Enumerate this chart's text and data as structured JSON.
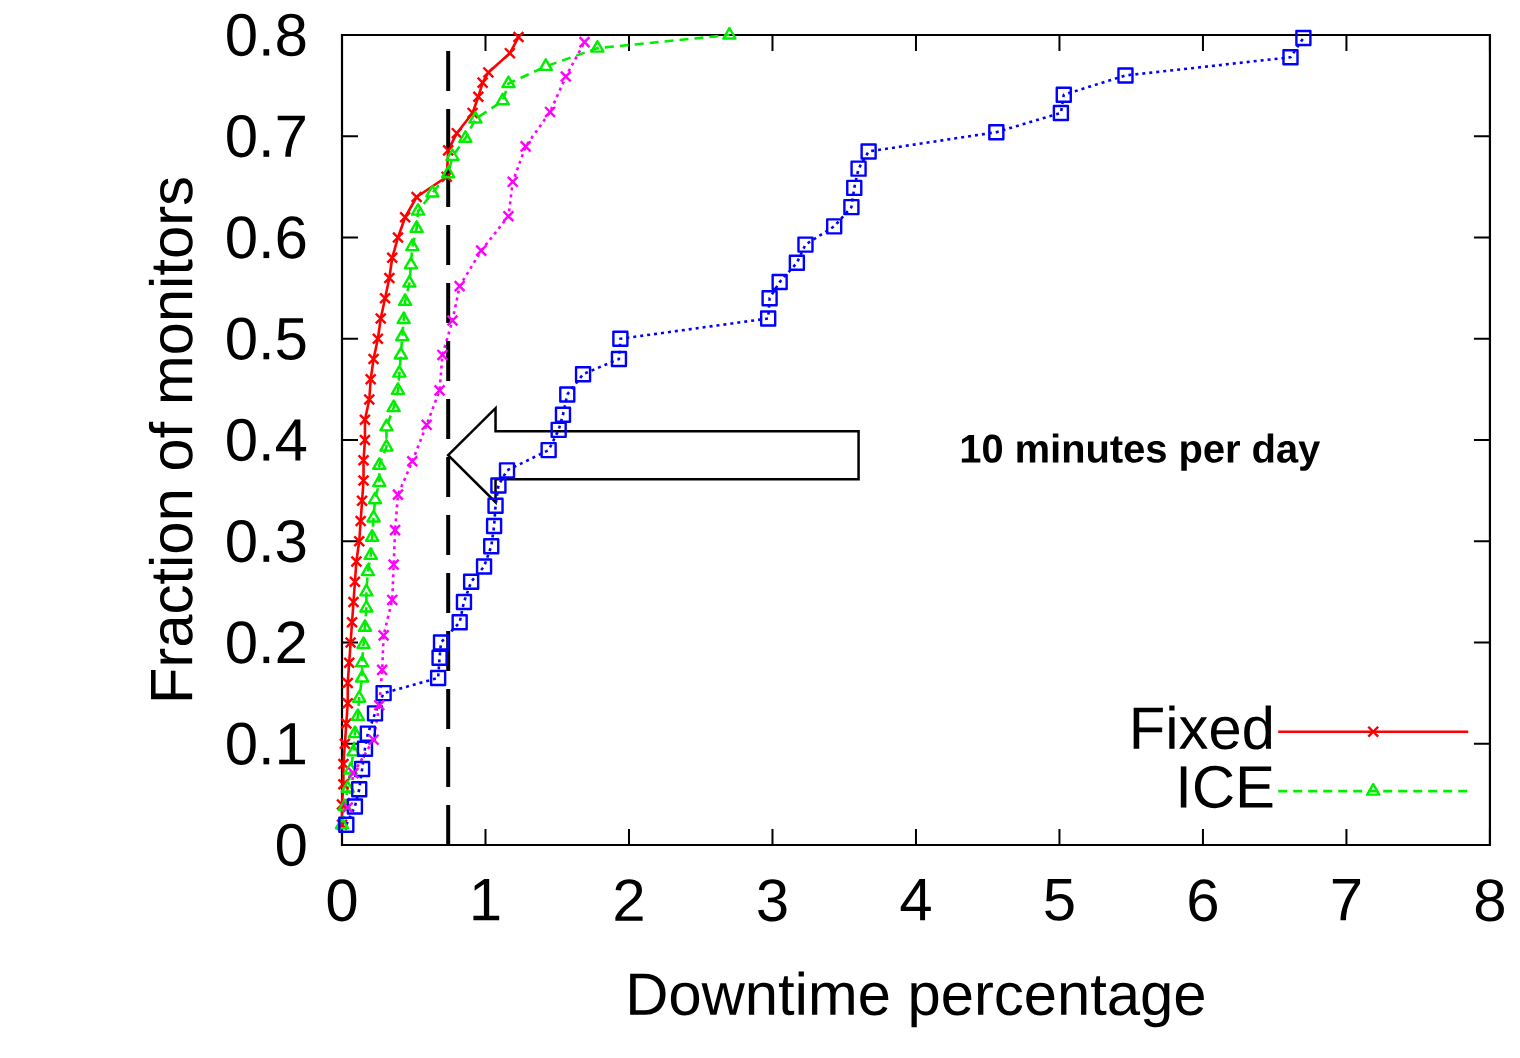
{
  "chart_data": {
    "type": "line",
    "xlabel": "Downtime percentage",
    "ylabel": "Fraction of monitors",
    "xlim": [
      0,
      8
    ],
    "ylim": [
      0,
      0.8
    ],
    "xticks": [
      0,
      1,
      2,
      3,
      4,
      5,
      6,
      7,
      8
    ],
    "yticks": [
      0,
      0.1,
      0.2,
      0.3,
      0.4,
      0.5,
      0.6,
      0.7,
      0.8
    ],
    "grid": false,
    "legend": "bottom right",
    "annotations": [
      "10 minutes per day"
    ],
    "ref_lines": [
      {
        "axis": "x",
        "value": 0.74,
        "color": "#000000",
        "line_style": "dashed"
      }
    ],
    "series": [
      {
        "name": "Fixed",
        "color": "#ff0000",
        "marker": "cross",
        "line_style": "solid",
        "x": [
          0.0,
          0.0,
          0.01,
          0.01,
          0.02,
          0.03,
          0.04,
          0.04,
          0.05,
          0.06,
          0.07,
          0.08,
          0.09,
          0.1,
          0.12,
          0.13,
          0.14,
          0.15,
          0.15,
          0.16,
          0.16,
          0.19,
          0.2,
          0.22,
          0.25,
          0.27,
          0.3,
          0.33,
          0.35,
          0.39,
          0.44,
          0.52,
          0.73,
          0.74,
          0.8,
          0.91,
          0.95,
          0.98,
          1.02,
          1.17,
          1.23
        ],
        "values": [
          0.02,
          0.04,
          0.06,
          0.08,
          0.1,
          0.12,
          0.14,
          0.16,
          0.18,
          0.2,
          0.22,
          0.24,
          0.26,
          0.28,
          0.3,
          0.32,
          0.34,
          0.36,
          0.38,
          0.4,
          0.42,
          0.44,
          0.46,
          0.48,
          0.5,
          0.52,
          0.54,
          0.56,
          0.58,
          0.6,
          0.62,
          0.64,
          0.66,
          0.686,
          0.703,
          0.723,
          0.739,
          0.753,
          0.763,
          0.782,
          0.798
        ]
      },
      {
        "name": "ICE",
        "color": "#00ee00",
        "marker": "triangle",
        "line_style": "dashed",
        "x": [
          0.0,
          0.02,
          0.04,
          0.06,
          0.08,
          0.09,
          0.11,
          0.12,
          0.14,
          0.14,
          0.15,
          0.16,
          0.17,
          0.17,
          0.18,
          0.2,
          0.21,
          0.22,
          0.23,
          0.26,
          0.26,
          0.31,
          0.31,
          0.36,
          0.39,
          0.4,
          0.41,
          0.42,
          0.43,
          0.44,
          0.47,
          0.48,
          0.49,
          0.52,
          0.53,
          0.63,
          0.74,
          0.77,
          0.86,
          0.93,
          1.12,
          1.16,
          1.42,
          1.78,
          2.7
        ],
        "values": [
          0.02,
          0.038,
          0.056,
          0.074,
          0.092,
          0.11,
          0.127,
          0.145,
          0.165,
          0.18,
          0.198,
          0.215,
          0.234,
          0.25,
          0.27,
          0.286,
          0.304,
          0.323,
          0.341,
          0.358,
          0.375,
          0.393,
          0.413,
          0.432,
          0.449,
          0.466,
          0.484,
          0.502,
          0.519,
          0.537,
          0.555,
          0.573,
          0.591,
          0.609,
          0.626,
          0.644,
          0.663,
          0.68,
          0.698,
          0.717,
          0.735,
          0.752,
          0.769,
          0.787,
          0.8
        ]
      },
      {
        "color": "#0000ff",
        "marker": "square",
        "line_style": "dotted",
        "x": [
          0.03,
          0.09,
          0.12,
          0.14,
          0.16,
          0.18,
          0.23,
          0.29,
          0.67,
          0.68,
          0.69,
          0.82,
          0.85,
          0.9,
          0.99,
          1.04,
          1.06,
          1.07,
          1.09,
          1.15,
          1.44,
          1.51,
          1.54,
          1.57,
          1.68,
          1.93,
          1.94,
          2.97,
          2.98,
          3.05,
          3.17,
          3.23,
          3.43,
          3.55,
          3.57,
          3.6,
          3.67,
          4.56,
          5.01,
          5.03,
          5.46,
          6.61,
          6.7
        ],
        "values": [
          0.02,
          0.038,
          0.055,
          0.075,
          0.095,
          0.11,
          0.13,
          0.15,
          0.165,
          0.185,
          0.2,
          0.22,
          0.24,
          0.26,
          0.275,
          0.295,
          0.315,
          0.335,
          0.355,
          0.37,
          0.39,
          0.41,
          0.425,
          0.445,
          0.465,
          0.48,
          0.5,
          0.52,
          0.54,
          0.556,
          0.575,
          0.593,
          0.611,
          0.63,
          0.649,
          0.668,
          0.685,
          0.704,
          0.723,
          0.741,
          0.76,
          0.778,
          0.797
        ]
      },
      {
        "color": "#ff00ff",
        "marker": "cross",
        "line_style": "dotted",
        "x": [
          0.04,
          0.08,
          0.22,
          0.26,
          0.28,
          0.29,
          0.35,
          0.36,
          0.37,
          0.39,
          0.49,
          0.59,
          0.68,
          0.7,
          0.77,
          0.82,
          0.97,
          1.16,
          1.19,
          1.28,
          1.45,
          1.56,
          1.69
        ],
        "values": [
          0.037,
          0.071,
          0.104,
          0.138,
          0.173,
          0.207,
          0.242,
          0.277,
          0.311,
          0.346,
          0.379,
          0.415,
          0.449,
          0.484,
          0.518,
          0.552,
          0.587,
          0.621,
          0.655,
          0.69,
          0.724,
          0.759,
          0.793
        ]
      }
    ]
  }
}
